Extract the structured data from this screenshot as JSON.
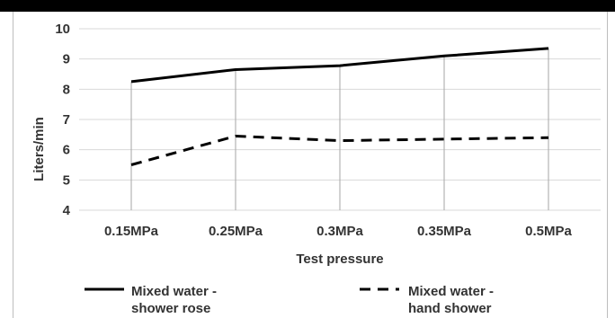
{
  "chart_data": {
    "type": "line",
    "categories": [
      "0.15MPa",
      "0.25MPa",
      "0.3MPa",
      "0.35MPa",
      "0.5MPa"
    ],
    "series": [
      {
        "name_lines": [
          "Mixed water -",
          "shower rose"
        ],
        "values": [
          8.25,
          8.65,
          8.78,
          9.1,
          9.35
        ],
        "style": "solid",
        "color": "#000000"
      },
      {
        "name_lines": [
          "Mixed water -",
          "hand shower"
        ],
        "values": [
          5.5,
          6.45,
          6.3,
          6.35,
          6.4
        ],
        "style": "dashed",
        "color": "#000000"
      }
    ],
    "xlabel": "Test pressure",
    "ylabel": "Liters/min",
    "ylim": [
      4,
      10
    ],
    "yticks": [
      "4",
      "5",
      "6",
      "7",
      "8",
      "9",
      "10"
    ],
    "grid": "horizontal",
    "legend": "bottom"
  },
  "colors": {
    "gridline": "#d9d9d9",
    "dropline": "#a6a6a6",
    "series_line": "#000000",
    "text": "#333333"
  }
}
